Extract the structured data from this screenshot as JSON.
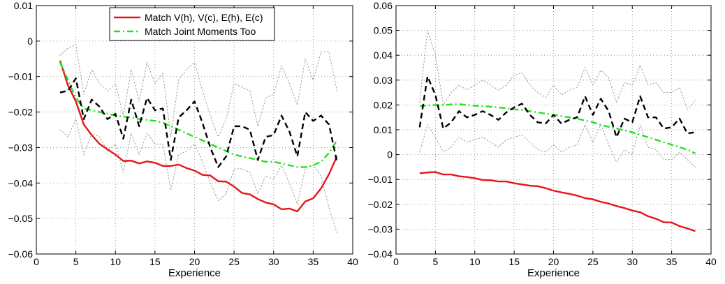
{
  "chart_data": [
    {
      "type": "line",
      "xlabel": "Experience",
      "ylabel": "",
      "xlim": [
        0,
        40
      ],
      "ylim": [
        -0.06,
        0.01
      ],
      "xticks": [
        0,
        5,
        10,
        15,
        20,
        25,
        30,
        35,
        40
      ],
      "yticks": [
        -0.06,
        -0.05,
        -0.04,
        -0.03,
        -0.02,
        -0.01,
        0,
        0.01
      ],
      "xtick_labels": [
        "0",
        "5",
        "10",
        "15",
        "20",
        "25",
        "30",
        "35",
        "40"
      ],
      "ytick_labels": [
        "−0.06",
        "−0.05",
        "−0.04",
        "−0.03",
        "−0.02",
        "−0.01",
        "0",
        "0.01"
      ],
      "grid": true,
      "legend": {
        "placement": "top-center"
      },
      "x": [
        3,
        4,
        5,
        6,
        7,
        8,
        9,
        10,
        11,
        12,
        13,
        14,
        15,
        16,
        17,
        18,
        19,
        20,
        21,
        22,
        23,
        24,
        25,
        26,
        27,
        28,
        29,
        30,
        31,
        32,
        33,
        34,
        35,
        36,
        37,
        38
      ],
      "series": [
        {
          "name": "Match V(h), V(c), E(h), E(c)",
          "style": "solid",
          "color": "#e8141b",
          "values": [
            -0.0055,
            -0.0125,
            -0.017,
            -0.0235,
            -0.0265,
            -0.029,
            -0.0305,
            -0.032,
            -0.0338,
            -0.0337,
            -0.0345,
            -0.0339,
            -0.0343,
            -0.0352,
            -0.0352,
            -0.0348,
            -0.0358,
            -0.0365,
            -0.0377,
            -0.0379,
            -0.0395,
            -0.0396,
            -0.041,
            -0.0428,
            -0.0432,
            -0.0445,
            -0.0455,
            -0.046,
            -0.0474,
            -0.0472,
            -0.048,
            -0.0452,
            -0.0443,
            -0.0415,
            -0.0375,
            -0.0325
          ]
        },
        {
          "name": "Match Joint Moments Too",
          "style": "dash-dot",
          "color": "#1ee31e",
          "values": [
            -0.006,
            -0.011,
            -0.016,
            -0.019,
            -0.0195,
            -0.02,
            -0.0205,
            -0.021,
            -0.0213,
            -0.0215,
            -0.022,
            -0.0222,
            -0.0225,
            -0.023,
            -0.024,
            -0.025,
            -0.026,
            -0.027,
            -0.028,
            -0.029,
            -0.03,
            -0.031,
            -0.032,
            -0.0325,
            -0.033,
            -0.0335,
            -0.034,
            -0.034,
            -0.0345,
            -0.035,
            -0.0355,
            -0.0355,
            -0.035,
            -0.034,
            -0.0315,
            -0.028
          ]
        },
        {
          "style": "dashed",
          "color": "#000000",
          "values": [
            -0.0145,
            -0.014,
            -0.0105,
            -0.022,
            -0.0165,
            -0.0185,
            -0.022,
            -0.0205,
            -0.0275,
            -0.0165,
            -0.024,
            -0.016,
            -0.0195,
            -0.019,
            -0.0335,
            -0.0215,
            -0.0195,
            -0.017,
            -0.023,
            -0.03,
            -0.0355,
            -0.0325,
            -0.024,
            -0.024,
            -0.025,
            -0.0335,
            -0.027,
            -0.0265,
            -0.021,
            -0.0255,
            -0.0325,
            -0.02,
            -0.0225,
            -0.021,
            -0.0235,
            -0.034
          ]
        },
        {
          "style": "dotted",
          "color": "#999999",
          "values": [
            -0.004,
            -0.002,
            -0.001,
            -0.015,
            -0.008,
            -0.012,
            -0.014,
            -0.012,
            -0.021,
            -0.008,
            -0.017,
            -0.006,
            -0.012,
            -0.009,
            -0.027,
            -0.011,
            -0.008,
            -0.006,
            -0.014,
            -0.021,
            -0.027,
            -0.022,
            -0.012,
            -0.013,
            -0.014,
            -0.024,
            -0.016,
            -0.015,
            -0.007,
            -0.012,
            -0.018,
            -0.005,
            -0.011,
            -0.003,
            -0.003,
            -0.014
          ]
        },
        {
          "style": "dotted",
          "color": "#999999",
          "values": [
            -0.025,
            -0.027,
            -0.022,
            -0.032,
            -0.026,
            -0.027,
            -0.031,
            -0.029,
            -0.037,
            -0.026,
            -0.032,
            -0.026,
            -0.029,
            -0.029,
            -0.042,
            -0.032,
            -0.031,
            -0.029,
            -0.034,
            -0.04,
            -0.045,
            -0.043,
            -0.036,
            -0.036,
            -0.037,
            -0.043,
            -0.038,
            -0.039,
            -0.035,
            -0.04,
            -0.046,
            -0.036,
            -0.035,
            -0.038,
            -0.047,
            -0.054
          ]
        }
      ]
    },
    {
      "type": "line",
      "xlabel": "Experience",
      "ylabel": "",
      "xlim": [
        0,
        40
      ],
      "ylim": [
        -0.04,
        0.06
      ],
      "xticks": [
        0,
        5,
        10,
        15,
        20,
        25,
        30,
        35,
        40
      ],
      "yticks": [
        -0.04,
        -0.03,
        -0.02,
        -0.01,
        0,
        0.01,
        0.02,
        0.03,
        0.04,
        0.05,
        0.06
      ],
      "xtick_labels": [
        "0",
        "5",
        "10",
        "15",
        "20",
        "25",
        "30",
        "35",
        "40"
      ],
      "ytick_labels": [
        "−0.04",
        "−0.03",
        "−0.02",
        "−0.01",
        "0",
        "0.01",
        "0.02",
        "0.03",
        "0.04",
        "0.05",
        "0.06"
      ],
      "grid": true,
      "x": [
        3,
        4,
        5,
        6,
        7,
        8,
        9,
        10,
        11,
        12,
        13,
        14,
        15,
        16,
        17,
        18,
        19,
        20,
        21,
        22,
        23,
        24,
        25,
        26,
        27,
        28,
        29,
        30,
        31,
        32,
        33,
        34,
        35,
        36,
        37,
        38
      ],
      "series": [
        {
          "style": "solid",
          "color": "#e8141b",
          "values": [
            -0.0075,
            -0.0072,
            -0.007,
            -0.008,
            -0.008,
            -0.0087,
            -0.009,
            -0.0095,
            -0.0102,
            -0.0103,
            -0.0108,
            -0.0108,
            -0.0115,
            -0.012,
            -0.0125,
            -0.0127,
            -0.0135,
            -0.0145,
            -0.0152,
            -0.0158,
            -0.0165,
            -0.0175,
            -0.018,
            -0.019,
            -0.0197,
            -0.0207,
            -0.0215,
            -0.0225,
            -0.0232,
            -0.0248,
            -0.0258,
            -0.0272,
            -0.0273,
            -0.0288,
            -0.0297,
            -0.0308
          ]
        },
        {
          "style": "dash-dot",
          "color": "#1ee31e",
          "values": [
            0.0195,
            0.0198,
            0.02,
            0.02,
            0.0202,
            0.0203,
            0.02,
            0.0197,
            0.0195,
            0.0193,
            0.019,
            0.0187,
            0.0182,
            0.018,
            0.0175,
            0.017,
            0.0165,
            0.016,
            0.0155,
            0.015,
            0.0145,
            0.0137,
            0.013,
            0.012,
            0.0112,
            0.0105,
            0.0098,
            0.009,
            0.008,
            0.007,
            0.006,
            0.005,
            0.004,
            0.003,
            0.002,
            0.0005
          ]
        },
        {
          "style": "dashed",
          "color": "#000000",
          "values": [
            0.011,
            0.0315,
            0.024,
            0.0105,
            0.013,
            0.0175,
            0.015,
            0.016,
            0.0175,
            0.016,
            0.014,
            0.017,
            0.019,
            0.0205,
            0.016,
            0.013,
            0.0125,
            0.016,
            0.0125,
            0.014,
            0.015,
            0.0235,
            0.016,
            0.0225,
            0.0175,
            0.007,
            0.0145,
            0.013,
            0.0235,
            0.015,
            0.015,
            0.0105,
            0.011,
            0.0145,
            0.0085,
            0.009
          ]
        },
        {
          "style": "dotted",
          "color": "#999999",
          "values": [
            0.021,
            0.05,
            0.04,
            0.02,
            0.025,
            0.028,
            0.026,
            0.028,
            0.03,
            0.028,
            0.026,
            0.028,
            0.032,
            0.033,
            0.028,
            0.025,
            0.023,
            0.028,
            0.024,
            0.026,
            0.027,
            0.035,
            0.028,
            0.034,
            0.031,
            0.021,
            0.029,
            0.028,
            0.036,
            0.028,
            0.029,
            0.025,
            0.025,
            0.027,
            0.018,
            0.022
          ]
        },
        {
          "style": "dotted",
          "color": "#999999",
          "values": [
            0.001,
            0.012,
            0.007,
            0.001,
            0.003,
            0.007,
            0.005,
            0.006,
            0.007,
            0.005,
            0.003,
            0.006,
            0.007,
            0.008,
            0.005,
            0.002,
            0.001,
            0.004,
            0.001,
            0.003,
            0.004,
            0.012,
            0.005,
            0.012,
            0.004,
            -0.003,
            0.002,
            0.0,
            0.012,
            0.003,
            0.002,
            -0.002,
            -0.002,
            0.001,
            -0.002,
            -0.005
          ]
        }
      ]
    }
  ]
}
